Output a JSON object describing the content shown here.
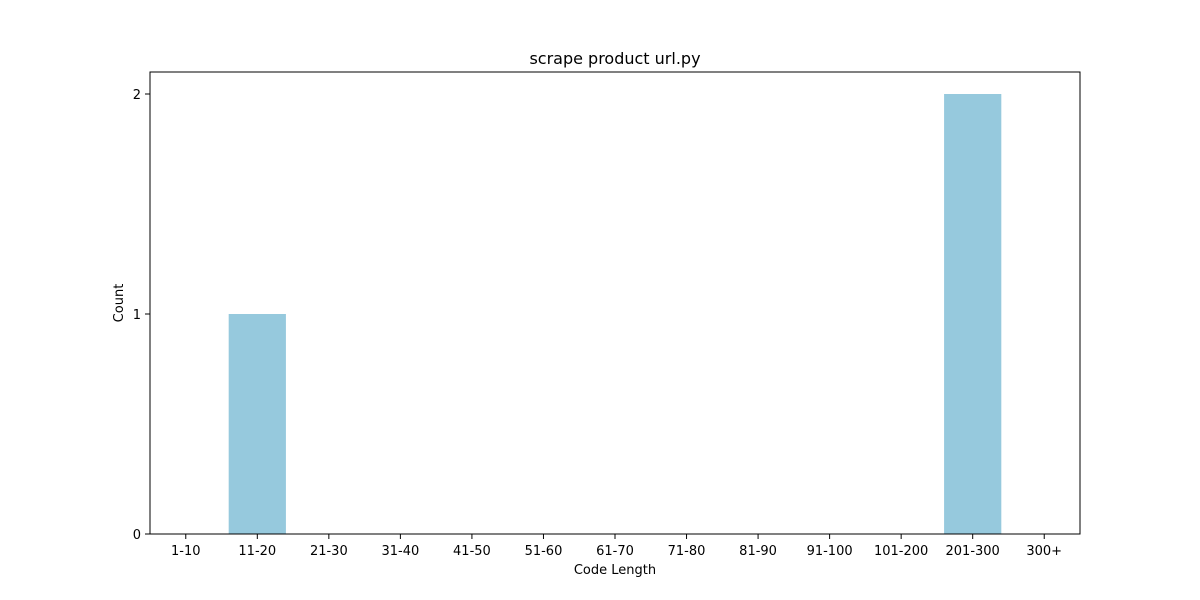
{
  "chart_data": {
    "type": "bar",
    "title": "scrape product url.py",
    "xlabel": "Code Length",
    "ylabel": "Count",
    "categories": [
      "1-10",
      "11-20",
      "21-30",
      "31-40",
      "41-50",
      "51-60",
      "61-70",
      "71-80",
      "81-90",
      "91-100",
      "101-200",
      "201-300",
      "300+"
    ],
    "values": [
      0,
      1,
      0,
      0,
      0,
      0,
      0,
      0,
      0,
      0,
      0,
      2,
      0
    ],
    "ylim": [
      0,
      2.1
    ],
    "yticks": [
      0,
      1,
      2
    ],
    "grid": false,
    "bar_color": "#96c9dd"
  }
}
